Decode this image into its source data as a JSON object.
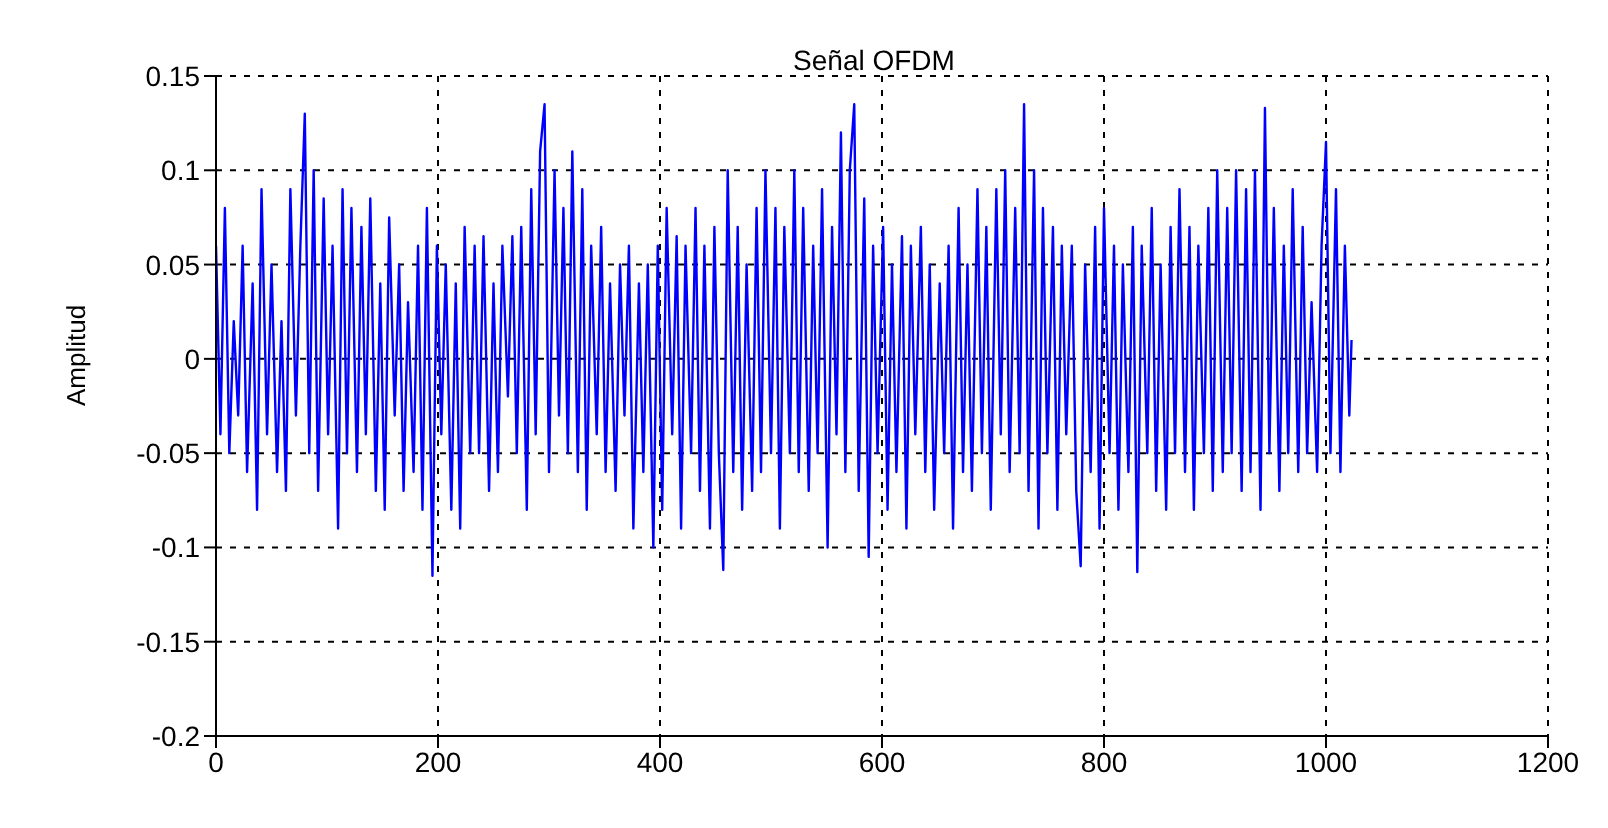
{
  "chart_data": {
    "type": "line",
    "title": "Señal OFDM",
    "ylabel": "Amplitud",
    "x": [
      0,
      4,
      8,
      12,
      16,
      20,
      24,
      28,
      33,
      37,
      41,
      46,
      50,
      55,
      59,
      63,
      67,
      72,
      76,
      80,
      84,
      88,
      92,
      97,
      101,
      105,
      110,
      114,
      118,
      122,
      127,
      131,
      135,
      139,
      144,
      148,
      152,
      156,
      161,
      165,
      169,
      173,
      178,
      182,
      186,
      190,
      195,
      199,
      203,
      207,
      212,
      216,
      220,
      224,
      229,
      233,
      237,
      241,
      246,
      250,
      254,
      258,
      263,
      267,
      271,
      275,
      280,
      284,
      288,
      292,
      296,
      300,
      305,
      309,
      313,
      317,
      321,
      326,
      330,
      334,
      338,
      343,
      347,
      351,
      355,
      360,
      364,
      368,
      372,
      376,
      381,
      385,
      389,
      394,
      398,
      402,
      406,
      411,
      415,
      419,
      423,
      428,
      432,
      436,
      440,
      445,
      449,
      453,
      457,
      461,
      466,
      470,
      474,
      478,
      483,
      487,
      491,
      495,
      500,
      504,
      508,
      512,
      517,
      521,
      525,
      529,
      534,
      538,
      542,
      546,
      551,
      555,
      559,
      563,
      567,
      571,
      575,
      579,
      584,
      588,
      592,
      596,
      601,
      605,
      609,
      613,
      618,
      622,
      626,
      630,
      635,
      639,
      643,
      647,
      652,
      656,
      660,
      664,
      669,
      673,
      677,
      681,
      686,
      690,
      694,
      698,
      703,
      707,
      711,
      715,
      720,
      724,
      728,
      732,
      737,
      741,
      745,
      749,
      754,
      758,
      762,
      766,
      771,
      775,
      779,
      783,
      788,
      792,
      796,
      800,
      805,
      809,
      813,
      817,
      822,
      826,
      830,
      834,
      839,
      843,
      847,
      851,
      856,
      860,
      864,
      868,
      873,
      877,
      881,
      885,
      890,
      894,
      898,
      902,
      907,
      911,
      915,
      919,
      924,
      928,
      932,
      936,
      941,
      945,
      949,
      953,
      958,
      962,
      966,
      970,
      975,
      979,
      983,
      987,
      992,
      996,
      1000,
      1004,
      1009,
      1013,
      1017,
      1021,
      1023
    ],
    "series": [
      {
        "color": "#0000ff",
        "values": [
          0.06,
          -0.04,
          0.08,
          -0.05,
          0.02,
          -0.03,
          0.06,
          -0.06,
          0.04,
          -0.08,
          0.09,
          -0.04,
          0.05,
          -0.06,
          0.02,
          -0.07,
          0.09,
          -0.03,
          0.06,
          0.13,
          -0.05,
          0.1,
          -0.07,
          0.085,
          -0.04,
          0.06,
          -0.09,
          0.09,
          -0.05,
          0.08,
          -0.06,
          0.07,
          -0.04,
          0.085,
          -0.07,
          0.04,
          -0.08,
          0.075,
          -0.03,
          0.05,
          -0.07,
          0.03,
          -0.06,
          0.06,
          -0.08,
          0.08,
          -0.115,
          0.06,
          -0.04,
          0.05,
          -0.08,
          0.04,
          -0.09,
          0.07,
          -0.05,
          0.06,
          -0.05,
          0.065,
          -0.07,
          0.04,
          -0.06,
          0.06,
          -0.02,
          0.065,
          -0.05,
          0.07,
          -0.08,
          0.09,
          -0.04,
          0.11,
          0.135,
          -0.06,
          0.1,
          -0.03,
          0.08,
          -0.05,
          0.11,
          -0.06,
          0.09,
          -0.08,
          0.06,
          -0.04,
          0.07,
          -0.06,
          0.04,
          -0.07,
          0.05,
          -0.03,
          0.06,
          -0.09,
          0.04,
          -0.06,
          0.05,
          -0.1,
          0.06,
          -0.08,
          0.08,
          -0.04,
          0.065,
          -0.09,
          0.06,
          -0.05,
          0.08,
          -0.07,
          0.06,
          -0.09,
          0.07,
          -0.05,
          -0.112,
          0.1,
          -0.06,
          0.07,
          -0.08,
          0.05,
          -0.07,
          0.08,
          -0.06,
          0.1,
          -0.05,
          0.08,
          -0.09,
          0.07,
          -0.05,
          0.1,
          -0.06,
          0.08,
          -0.07,
          0.06,
          -0.05,
          0.09,
          -0.1,
          0.07,
          -0.04,
          0.12,
          -0.06,
          0.1,
          0.135,
          -0.07,
          0.085,
          -0.105,
          0.06,
          -0.05,
          0.07,
          -0.08,
          0.05,
          -0.06,
          0.065,
          -0.09,
          0.06,
          -0.04,
          0.07,
          -0.06,
          0.05,
          -0.08,
          0.04,
          -0.05,
          0.06,
          -0.09,
          0.08,
          -0.06,
          0.05,
          -0.07,
          0.09,
          -0.05,
          0.07,
          -0.08,
          0.09,
          -0.04,
          0.1,
          -0.06,
          0.08,
          -0.05,
          0.135,
          -0.07,
          0.1,
          -0.09,
          0.08,
          -0.05,
          0.07,
          -0.08,
          0.06,
          -0.04,
          0.06,
          -0.07,
          -0.11,
          0.05,
          -0.06,
          0.07,
          -0.09,
          0.08,
          -0.05,
          0.06,
          -0.08,
          0.05,
          -0.06,
          0.07,
          -0.113,
          0.06,
          -0.05,
          0.08,
          -0.07,
          0.05,
          -0.08,
          0.07,
          -0.05,
          0.09,
          -0.06,
          0.07,
          -0.08,
          0.06,
          -0.05,
          0.08,
          -0.07,
          0.1,
          -0.06,
          0.08,
          -0.05,
          0.1,
          -0.07,
          0.09,
          -0.06,
          0.1,
          -0.08,
          0.133,
          -0.05,
          0.08,
          -0.07,
          0.06,
          -0.05,
          0.09,
          -0.06,
          0.07,
          -0.05,
          0.03,
          -0.06,
          0.06,
          0.115,
          -0.05,
          0.09,
          -0.06,
          0.06,
          -0.03,
          0.01
        ]
      }
    ],
    "xlim": [
      0,
      1200
    ],
    "xticks": [
      0,
      200,
      400,
      600,
      800,
      1000,
      1200
    ],
    "ylim": [
      -0.2,
      0.15
    ],
    "yticks": [
      -0.2,
      -0.15,
      -0.1,
      -0.05,
      0,
      0.05,
      0.1,
      0.15
    ],
    "grid": true,
    "line_style": "solid",
    "marker": "none",
    "legend": false
  }
}
